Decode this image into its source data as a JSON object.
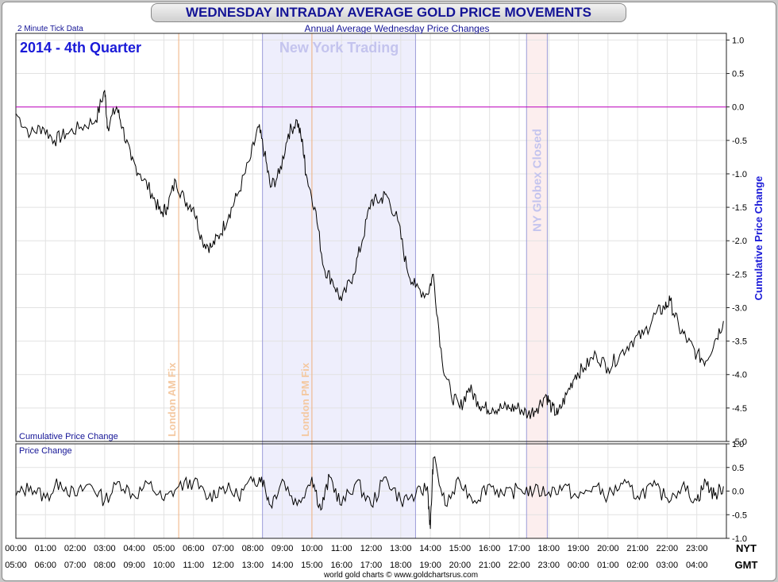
{
  "header": {
    "title": "WEDNESDAY INTRADAY AVERAGE GOLD PRICE MOVEMENTS",
    "subtitle": "Annual Average Wednesday Price Changes",
    "tick_note": "2 Minute Tick Data",
    "period": "2014 - 4th Quarter",
    "footer": "world gold charts © www.goldchartsrus.com"
  },
  "chart_data": [
    {
      "type": "line",
      "name": "cumulative-price-change",
      "panel_label": "Cumulative Price Change",
      "ylabel": "Cumulative Price Change",
      "ylim": [
        -5.0,
        1.1
      ],
      "yticks": [
        "1.0",
        "0.5",
        "0.0",
        "-0.5",
        "-1.0",
        "-1.5",
        "-2.0",
        "-2.5",
        "-3.0",
        "-3.5",
        "-4.0",
        "-4.5",
        "-5.0"
      ],
      "xlim_hours_nyt": [
        0,
        24
      ],
      "x_hours_nyt": [
        0.0,
        0.5,
        0.9,
        1.3,
        1.7,
        2.2,
        2.7,
        3.0,
        3.1,
        3.4,
        3.6,
        3.9,
        4.2,
        4.6,
        4.9,
        5.1,
        5.4,
        5.7,
        6.0,
        6.3,
        6.6,
        6.9,
        7.2,
        7.5,
        7.9,
        8.2,
        8.4,
        8.6,
        8.9,
        9.2,
        9.5,
        9.7,
        9.8,
        10.1,
        10.4,
        10.7,
        11.0,
        11.4,
        11.7,
        12.0,
        12.3,
        12.5,
        12.9,
        13.2,
        13.5,
        13.9,
        14.1,
        14.4,
        14.7,
        15.0,
        15.3,
        15.6,
        15.8,
        16.1,
        16.4,
        16.7,
        17.0,
        17.3,
        17.6,
        17.9,
        18.1,
        18.3,
        18.6,
        18.9,
        19.2,
        19.6,
        20.0,
        20.4,
        20.8,
        21.2,
        21.6,
        21.9,
        22.1,
        22.4,
        22.7,
        23.0,
        23.3,
        23.6,
        23.9
      ],
      "y_values": [
        -0.1,
        -0.4,
        -0.3,
        -0.5,
        -0.4,
        -0.3,
        -0.2,
        0.25,
        -0.3,
        0.0,
        -0.3,
        -0.8,
        -1.0,
        -1.3,
        -1.6,
        -1.5,
        -1.1,
        -1.4,
        -1.5,
        -2.0,
        -2.1,
        -1.9,
        -1.6,
        -1.3,
        -0.8,
        -0.3,
        -0.7,
        -1.2,
        -1.0,
        -0.4,
        -0.2,
        -0.6,
        -1.0,
        -1.5,
        -2.4,
        -2.6,
        -2.9,
        -2.5,
        -2.0,
        -1.4,
        -1.4,
        -1.3,
        -1.7,
        -2.4,
        -2.7,
        -2.8,
        -2.5,
        -3.8,
        -4.3,
        -4.5,
        -4.2,
        -4.4,
        -4.5,
        -4.5,
        -4.5,
        -4.5,
        -4.5,
        -4.6,
        -4.5,
        -4.3,
        -4.5,
        -4.6,
        -4.3,
        -4.0,
        -3.9,
        -3.7,
        -3.9,
        -3.7,
        -3.5,
        -3.4,
        -3.1,
        -3.0,
        -2.9,
        -3.3,
        -3.5,
        -3.7,
        -3.8,
        -3.5,
        -3.2
      ]
    },
    {
      "type": "line",
      "name": "price-change",
      "panel_label": "Price Change",
      "ylim": [
        -1.0,
        1.0
      ],
      "yticks": [
        "1.0",
        "0.5",
        "0.0",
        "-0.5",
        "-1.0"
      ],
      "xlim_hours_nyt": [
        0,
        24
      ],
      "x_hours_nyt": [
        0.0,
        0.5,
        1.0,
        1.5,
        2.0,
        2.5,
        3.0,
        3.5,
        4.0,
        4.5,
        5.0,
        5.5,
        6.0,
        6.5,
        7.0,
        7.5,
        8.0,
        8.3,
        8.6,
        9.0,
        9.5,
        10.0,
        10.3,
        10.6,
        11.0,
        11.5,
        12.0,
        12.5,
        13.0,
        13.5,
        13.9,
        14.0,
        14.1,
        14.5,
        15.0,
        15.5,
        16.0,
        16.5,
        17.0,
        17.5,
        18.0,
        18.5,
        19.0,
        19.5,
        20.0,
        20.5,
        21.0,
        21.5,
        22.0,
        22.5,
        23.0,
        23.3,
        23.6,
        23.9
      ],
      "y_values": [
        -0.1,
        0.1,
        -0.15,
        0.2,
        -0.1,
        0.15,
        -0.2,
        0.2,
        -0.1,
        0.15,
        -0.2,
        0.1,
        0.2,
        -0.15,
        0.1,
        -0.1,
        0.2,
        0.3,
        -0.3,
        0.25,
        -0.3,
        0.3,
        -0.4,
        0.3,
        -0.3,
        0.2,
        -0.3,
        0.3,
        -0.2,
        -0.1,
        0.1,
        -0.8,
        0.7,
        -0.3,
        0.2,
        -0.2,
        0.15,
        -0.1,
        0.05,
        0.0,
        -0.02,
        0.1,
        -0.15,
        0.1,
        -0.1,
        0.15,
        -0.1,
        0.1,
        -0.15,
        0.1,
        -0.2,
        0.2,
        -0.1,
        0.1
      ]
    }
  ],
  "time_axis": {
    "nyt_label": "NYT",
    "gmt_label": "GMT",
    "nyt": [
      "00:00",
      "01:00",
      "02:00",
      "03:00",
      "04:00",
      "05:00",
      "06:00",
      "07:00",
      "08:00",
      "09:00",
      "10:00",
      "11:00",
      "12:00",
      "13:00",
      "14:00",
      "15:00",
      "16:00",
      "17:00",
      "18:00",
      "19:00",
      "20:00",
      "21:00",
      "22:00",
      "23:00"
    ],
    "gmt": [
      "05:00",
      "06:00",
      "07:00",
      "08:00",
      "09:00",
      "10:00",
      "11:00",
      "12:00",
      "13:00",
      "14:00",
      "15:00",
      "16:00",
      "17:00",
      "18:00",
      "19:00",
      "20:00",
      "21:00",
      "22:00",
      "23:00",
      "00:00",
      "01:00",
      "02:00",
      "03:00",
      "04:00"
    ]
  },
  "annotations": {
    "london_am": {
      "label": "London AM Fix",
      "hour": 5.5
    },
    "london_pm": {
      "label": "London PM Fix",
      "hour": 10.0
    },
    "new_york": {
      "label": "New York Trading",
      "start": 8.33,
      "end": 13.5
    },
    "globex": {
      "label": "NY Globex Closed",
      "start": 17.25,
      "end": 17.95
    }
  },
  "colors": {
    "series": "#000000",
    "zero_line": "#c000c0",
    "ny_band": "#eeeefc",
    "ny_edge": "#9c9cd8",
    "globex_band": "#fceeee",
    "fix_line": "#f0b080",
    "title_text": "#141496",
    "axis_text": "#000000",
    "grid": "#e2e2e2"
  }
}
